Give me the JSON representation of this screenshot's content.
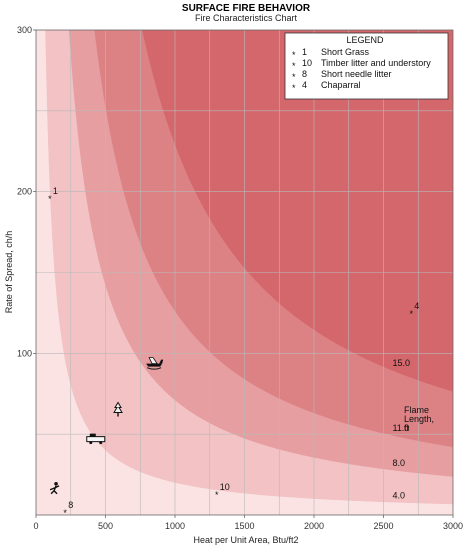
{
  "chart_data": {
    "type": "scatter",
    "title": "SURFACE FIRE BEHAVIOR",
    "subtitle": "Fire Characteristics Chart",
    "xlabel": "Heat per Unit Area, Btu/ft2",
    "ylabel": "Rate of Spread, ch/h",
    "xlim": [
      0,
      3000
    ],
    "ylim": [
      0,
      300
    ],
    "x_ticks": [
      0,
      500,
      1000,
      1500,
      2000,
      2500,
      3000
    ],
    "y_ticks": [
      100,
      200,
      300
    ],
    "grid": true,
    "legend": {
      "title": "LEGEND",
      "placement": "top-right",
      "entries": [
        {
          "marker": "*",
          "id": "1",
          "name": "Short Grass"
        },
        {
          "marker": "*",
          "id": "10",
          "name": "Timber litter and understory"
        },
        {
          "marker": "*",
          "id": "8",
          "name": "Short needle litter"
        },
        {
          "marker": "*",
          "id": "4",
          "name": "Chaparral"
        }
      ]
    },
    "points": [
      {
        "label": "1",
        "x": 100,
        "y": 196
      },
      {
        "label": "10",
        "x": 1300,
        "y": 13
      },
      {
        "label": "8",
        "x": 210,
        "y": 2
      },
      {
        "label": "4",
        "x": 2700,
        "y": 125
      }
    ],
    "flame_length": {
      "title_lines": [
        "Flame",
        "Length,",
        "ft"
      ],
      "curves": [
        {
          "label": "4.0",
          "constant": 20000
        },
        {
          "label": "8.0",
          "constant": 71000
        },
        {
          "label": "11.0",
          "constant": 126000
        },
        {
          "label": "15.0",
          "constant": 229000
        }
      ]
    },
    "colors": {
      "zone_1": "#fbe3e4",
      "zone_2": "#f2c2c4",
      "zone_3": "#e79ea1",
      "zone_4": "#dc8285",
      "zone_5": "#d4676b",
      "grid": "#b9b9b9",
      "border": "#6a6a6a"
    },
    "icons": [
      {
        "name": "person-icon",
        "x": 130,
        "y": 15
      },
      {
        "name": "engine-icon",
        "x": 430,
        "y": 46
      },
      {
        "name": "tree-icon",
        "x": 590,
        "y": 64
      },
      {
        "name": "aircraft-icon",
        "x": 850,
        "y": 93
      }
    ]
  }
}
